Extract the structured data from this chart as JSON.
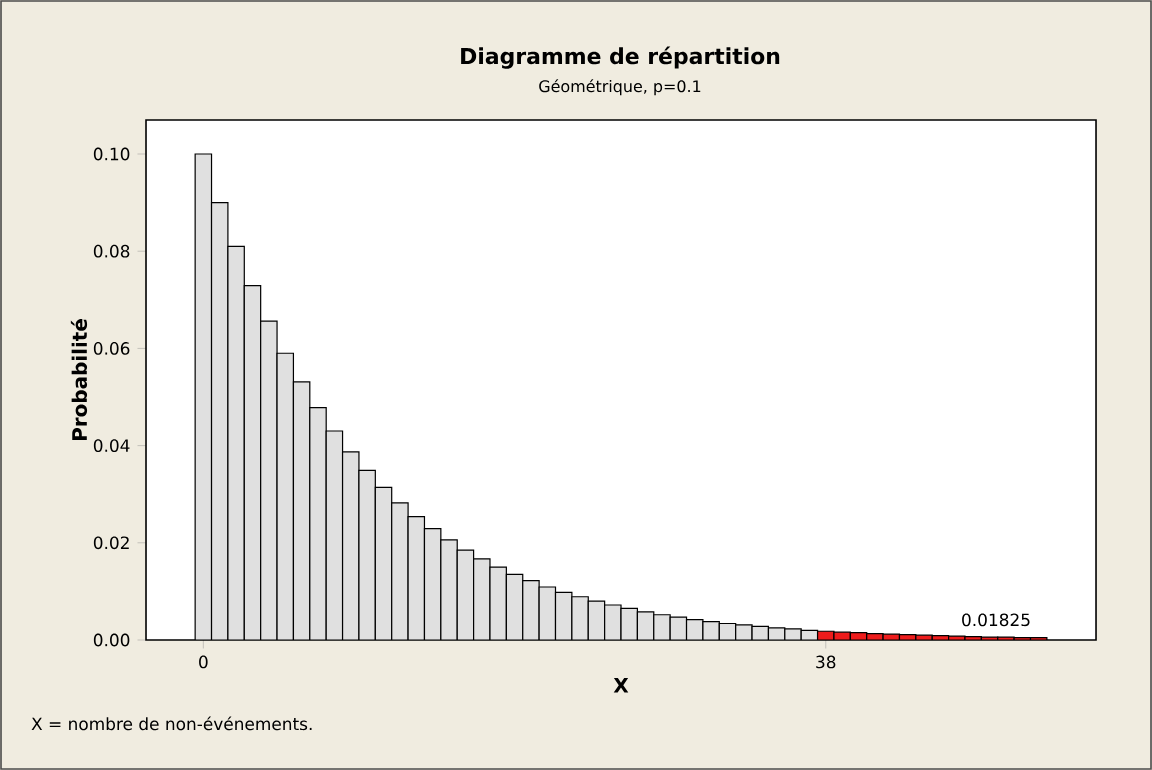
{
  "chart_data": {
    "type": "bar",
    "title": "Diagramme de répartition",
    "subtitle": "Géométrique, p=0.1",
    "xlabel": "X",
    "ylabel": "Probabilité",
    "categories": [
      "0",
      null,
      null,
      null,
      null,
      null,
      null,
      null,
      null,
      null,
      null,
      null,
      null,
      null,
      null,
      null,
      null,
      null,
      null,
      null,
      null,
      null,
      null,
      null,
      null,
      null,
      null,
      null,
      null,
      null,
      null,
      null,
      null,
      null,
      null,
      null,
      null,
      null,
      "38",
      null,
      null,
      null,
      null,
      null,
      null,
      null,
      null,
      null,
      null,
      null,
      null,
      null
    ],
    "values": [
      0.1,
      0.09,
      0.081,
      0.0729,
      0.0656,
      0.059,
      0.0531,
      0.0478,
      0.043,
      0.0387,
      0.0349,
      0.0314,
      0.0282,
      0.0254,
      0.0229,
      0.0206,
      0.0185,
      0.0167,
      0.015,
      0.0135,
      0.0122,
      0.0109,
      0.0098,
      0.0089,
      0.008,
      0.0072,
      0.0065,
      0.0058,
      0.0052,
      0.0047,
      0.0042,
      0.0038,
      0.0034,
      0.0031,
      0.0028,
      0.0025,
      0.0023,
      0.002,
      0.0018,
      0.0016,
      0.0015,
      0.0013,
      0.0012,
      0.0011,
      0.001,
      0.0009,
      0.0008,
      0.0007,
      0.0006,
      0.0006,
      0.0005,
      0.0005
    ],
    "colors": [
      "#e0e0e0",
      "#e0e0e0",
      "#e0e0e0",
      "#e0e0e0",
      "#e0e0e0",
      "#e0e0e0",
      "#e0e0e0",
      "#e0e0e0",
      "#e0e0e0",
      "#e0e0e0",
      "#e0e0e0",
      "#e0e0e0",
      "#e0e0e0",
      "#e0e0e0",
      "#e0e0e0",
      "#e0e0e0",
      "#e0e0e0",
      "#e0e0e0",
      "#e0e0e0",
      "#e0e0e0",
      "#e0e0e0",
      "#e0e0e0",
      "#e0e0e0",
      "#e0e0e0",
      "#e0e0e0",
      "#e0e0e0",
      "#e0e0e0",
      "#e0e0e0",
      "#e0e0e0",
      "#e0e0e0",
      "#e0e0e0",
      "#e0e0e0",
      "#e0e0e0",
      "#e0e0e0",
      "#e0e0e0",
      "#e0e0e0",
      "#e0e0e0",
      "#e0e0e0",
      "#ee1c1c",
      "#ee1c1c",
      "#ee1c1c",
      "#ee1c1c",
      "#ee1c1c",
      "#ee1c1c",
      "#ee1c1c",
      "#ee1c1c",
      "#ee1c1c",
      "#ee1c1c",
      "#ee1c1c",
      "#ee1c1c",
      "#ee1c1c",
      "#ee1c1c"
    ],
    "ylim": [
      0,
      0.107
    ],
    "yticks": [
      {
        "value": 0,
        "label": "0.00"
      },
      {
        "value": 0.02,
        "label": "0.02"
      },
      {
        "value": 0.04,
        "label": "0.04"
      },
      {
        "value": 0.06,
        "label": "0.06"
      },
      {
        "value": 0.08,
        "label": "0.08"
      },
      {
        "value": 0.1,
        "label": "0.10"
      }
    ],
    "annotations": [
      "0.01825",
      "X = nombre de non-événements."
    ]
  }
}
